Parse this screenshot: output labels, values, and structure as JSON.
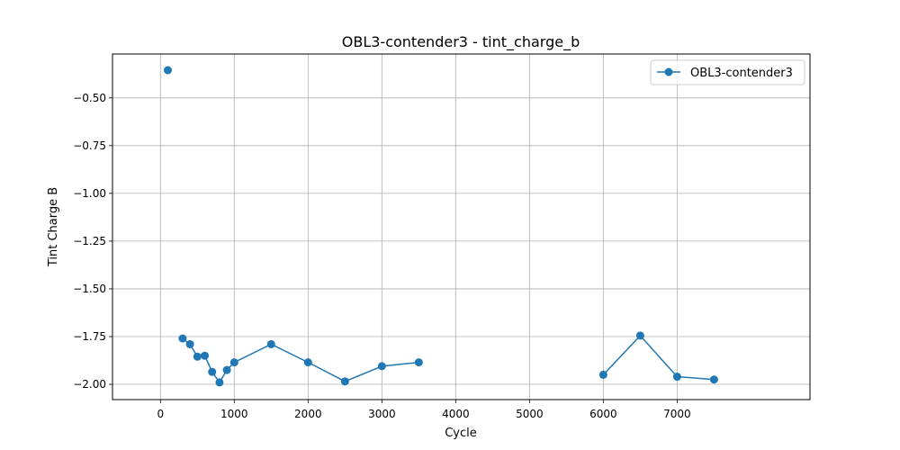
{
  "chart_data": {
    "type": "line",
    "title": "OBL3-contender3 - tint_charge_b",
    "xlabel": "Cycle",
    "ylabel": "Tint Charge B",
    "xlim": [
      -650,
      8800
    ],
    "ylim": [
      -2.08,
      -0.27
    ],
    "xticks": [
      0,
      1000,
      2000,
      3000,
      4000,
      5000,
      6000,
      7000
    ],
    "xtick_labels": [
      "0",
      "1000",
      "2000",
      "3000",
      "4000",
      "5000",
      "6000",
      "7000"
    ],
    "yticks": [
      -0.5,
      -0.75,
      -1.0,
      -1.25,
      -1.5,
      -1.75,
      -2.0
    ],
    "ytick_labels": [
      "−0.50",
      "−0.75",
      "−1.00",
      "−1.25",
      "−1.50",
      "−1.75",
      "−2.00"
    ],
    "grid": true,
    "legend_position": "top-right",
    "series": [
      {
        "name": "OBL3-contender3",
        "color": "#1f77b4",
        "marker": "circle",
        "segments": [
          [
            [
              100,
              -0.355
            ]
          ],
          [
            [
              300,
              -1.76
            ],
            [
              400,
              -1.79
            ],
            [
              500,
              -1.855
            ],
            [
              600,
              -1.85
            ],
            [
              700,
              -1.935
            ],
            [
              800,
              -1.99
            ],
            [
              900,
              -1.925
            ],
            [
              1000,
              -1.885
            ],
            [
              1500,
              -1.79
            ],
            [
              2000,
              -1.885
            ],
            [
              2500,
              -1.985
            ],
            [
              3000,
              -1.905
            ],
            [
              3500,
              -1.885
            ]
          ],
          [
            [
              6000,
              -1.95
            ],
            [
              6500,
              -1.745
            ],
            [
              7000,
              -1.96
            ],
            [
              7500,
              -1.975
            ]
          ]
        ]
      }
    ]
  }
}
